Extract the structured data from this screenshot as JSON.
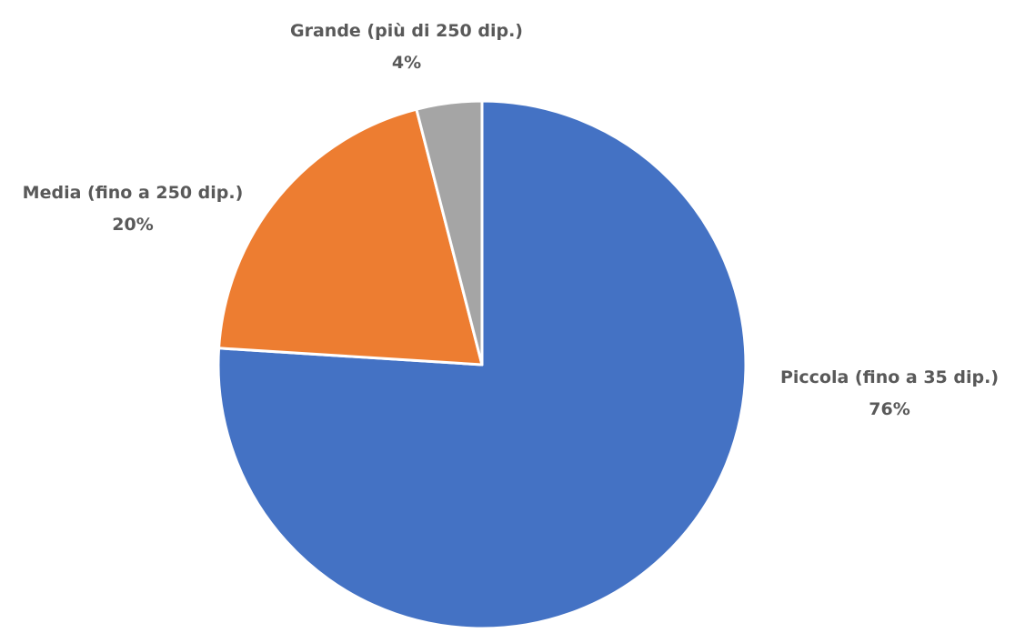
{
  "chart_data": {
    "type": "pie",
    "title": "",
    "slices": [
      {
        "label": "Piccola (fino a 35 dip.)",
        "value": 76,
        "value_label": "76%",
        "color": "#4472C4"
      },
      {
        "label": "Media (fino a 250 dip.)",
        "value": 20,
        "value_label": "20%",
        "color": "#ED7D31"
      },
      {
        "label": "Grande (più di 250 dip.)",
        "value": 4,
        "value_label": "4%",
        "color": "#A5A5A5"
      }
    ],
    "start_angle": "12 o'clock",
    "direction": "clockwise",
    "legend": "none",
    "data_labels": "outside-end"
  }
}
